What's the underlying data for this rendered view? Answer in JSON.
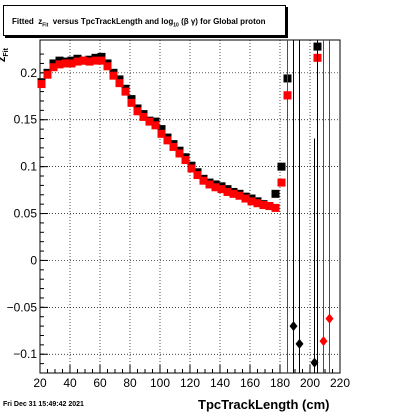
{
  "title": {
    "prefix": "Fitted",
    "z": "z",
    "z_sub": "Fit",
    "middle": "versus TpcTrackLength and log",
    "log_sub": "10",
    "suffix": "(β γ) for Global proton"
  },
  "footer": "Fri Dec 31 15:49:42 2021",
  "chart_data": {
    "type": "scatter",
    "xlabel": "TpcTrackLength (cm)",
    "ylabel": "z",
    "ylabel_sub": "Fit",
    "xlim": [
      20,
      220
    ],
    "ylim": [
      -0.12,
      0.235
    ],
    "grid": true,
    "x_ticks": [
      20,
      40,
      60,
      80,
      100,
      120,
      140,
      160,
      180,
      200,
      220
    ],
    "y_ticks": [
      -0.1,
      -0.05,
      0,
      0.05,
      0.1,
      0.15,
      0.2
    ],
    "y_tick_labels": [
      "−0.1",
      "−0.05",
      "0",
      "0.05",
      "0.1",
      "0.15",
      "0.2"
    ],
    "series": [
      {
        "color": "#000000",
        "marker": "square",
        "x": [
          21,
          25,
          29,
          33,
          37,
          41,
          45,
          49,
          53,
          57,
          61,
          65,
          69,
          73,
          77,
          81,
          85,
          89,
          93,
          97,
          101,
          105,
          109,
          113,
          117,
          121,
          125,
          129,
          133,
          137,
          141,
          145,
          149,
          153,
          157,
          161,
          165,
          169,
          173,
          177,
          181,
          185
        ],
        "y": [
          0.19,
          0.2,
          0.21,
          0.213,
          0.212,
          0.213,
          0.215,
          0.213,
          0.214,
          0.216,
          0.217,
          0.21,
          0.2,
          0.193,
          0.183,
          0.172,
          0.162,
          0.156,
          0.149,
          0.148,
          0.14,
          0.131,
          0.124,
          0.117,
          0.11,
          0.101,
          0.094,
          0.087,
          0.083,
          0.081,
          0.079,
          0.076,
          0.073,
          0.071,
          0.068,
          0.066,
          0.063,
          0.06,
          0.058,
          0.071,
          0.1,
          0.194
        ]
      },
      {
        "color": "#ff0000",
        "marker": "square",
        "x": [
          21,
          25,
          29,
          33,
          37,
          41,
          45,
          49,
          53,
          57,
          61,
          65,
          69,
          73,
          77,
          81,
          85,
          89,
          93,
          97,
          101,
          105,
          109,
          113,
          117,
          121,
          125,
          129,
          133,
          137,
          141,
          145,
          149,
          153,
          157,
          161,
          165,
          169,
          173,
          177,
          181,
          185
        ],
        "y": [
          0.188,
          0.198,
          0.206,
          0.209,
          0.21,
          0.21,
          0.212,
          0.213,
          0.212,
          0.213,
          0.213,
          0.207,
          0.197,
          0.189,
          0.18,
          0.168,
          0.159,
          0.153,
          0.148,
          0.144,
          0.135,
          0.128,
          0.121,
          0.114,
          0.107,
          0.098,
          0.091,
          0.085,
          0.081,
          0.078,
          0.076,
          0.073,
          0.071,
          0.069,
          0.066,
          0.063,
          0.061,
          0.059,
          0.058,
          0.056,
          0.083,
          0.176
        ]
      },
      {
        "color": "#000000",
        "marker": "diamond",
        "x": [
          189,
          193,
          203
        ],
        "y": [
          -0.07,
          -0.089,
          -0.109
        ],
        "err_top": [
          0.235,
          0.235,
          0.13
        ],
        "err_bot": [
          -0.12,
          -0.12,
          -0.12
        ]
      },
      {
        "color": "#ff0000",
        "marker": "diamond",
        "x": [
          209,
          213
        ],
        "y": [
          -0.086,
          -0.062
        ],
        "err_top": [
          0.235,
          0.235
        ],
        "err_bot": [
          -0.12,
          -0.12
        ]
      },
      {
        "color": "#ff0000",
        "marker": "square",
        "x": [
          185,
          205
        ],
        "y": [
          0.176,
          0.216
        ],
        "err_top": [
          0.235,
          0.235
        ],
        "err_bot": [
          -0.12,
          -0.062
        ]
      },
      {
        "color": "#000000",
        "marker": "square",
        "x": [
          205
        ],
        "y": [
          0.228
        ],
        "err_top": [
          0.235
        ],
        "err_bot": [
          -0.12
        ]
      }
    ]
  }
}
